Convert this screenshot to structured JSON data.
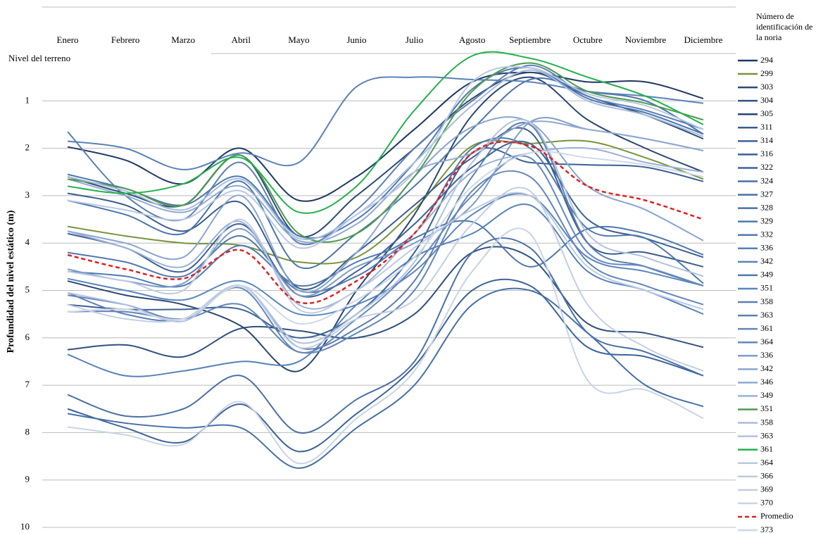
{
  "chart_data": {
    "type": "line",
    "y_label": "Profundidad del nivel estático (m)",
    "legend_title": "Número de identificación de la noria",
    "categories": [
      "Enero",
      "Febrero",
      "Marzo",
      "Abril",
      "Mayo",
      "Junio",
      "Julio",
      "Agosto",
      "Septiembre",
      "Octubre",
      "Noviembre",
      "Diciembre"
    ],
    "ylim": [
      0,
      10
    ],
    "y_inverted": true,
    "smooth": true,
    "grid": true,
    "legend": "right",
    "yticks": [
      {
        "value": 0,
        "label": "Nivel del terreno"
      },
      1,
      2,
      3,
      4,
      5,
      6,
      7,
      8,
      9,
      10
    ],
    "series": [
      {
        "name": "294",
        "color": "#1f3864",
        "values": [
          1.97,
          2.25,
          2.75,
          2.0,
          3.1,
          2.6,
          1.6,
          0.6,
          0.4,
          0.6,
          0.6,
          0.95
        ]
      },
      {
        "name": "299",
        "color": "#77933c",
        "values": [
          3.65,
          3.85,
          4.0,
          4.05,
          4.4,
          4.3,
          3.3,
          1.95,
          1.9,
          1.85,
          2.2,
          2.65
        ]
      },
      {
        "name": "303",
        "color": "#2e4a73",
        "values": [
          2.6,
          2.95,
          3.2,
          2.15,
          3.85,
          3.0,
          2.0,
          0.95,
          0.4,
          0.9,
          1.3,
          1.8
        ]
      },
      {
        "name": "304",
        "color": "#2f5080",
        "values": [
          6.25,
          6.15,
          6.4,
          5.8,
          5.85,
          6.0,
          5.5,
          4.2,
          4.3,
          5.7,
          5.9,
          6.2
        ]
      },
      {
        "name": "305",
        "color": "#2a4670",
        "values": [
          4.8,
          5.1,
          5.3,
          5.75,
          6.7,
          5.0,
          3.4,
          1.3,
          0.5,
          1.4,
          2.0,
          2.5
        ]
      },
      {
        "name": "311",
        "color": "#3a5c8c",
        "values": [
          2.95,
          3.2,
          3.75,
          3.15,
          4.95,
          4.2,
          3.2,
          2.2,
          1.65,
          4.0,
          4.2,
          4.5
        ]
      },
      {
        "name": "314",
        "color": "#3d6196",
        "values": [
          3.8,
          4.1,
          4.6,
          3.6,
          5.1,
          4.6,
          3.6,
          2.4,
          1.9,
          3.5,
          3.9,
          4.3
        ]
      },
      {
        "name": "316",
        "color": "#3b5f92",
        "values": [
          5.3,
          5.4,
          5.4,
          5.4,
          6.0,
          5.5,
          4.2,
          2.1,
          2.3,
          2.35,
          2.4,
          2.7
        ]
      },
      {
        "name": "322",
        "color": "#3c639a",
        "values": [
          7.5,
          7.9,
          8.2,
          7.4,
          8.4,
          7.6,
          6.6,
          5.0,
          4.9,
          6.2,
          6.4,
          6.8
        ]
      },
      {
        "name": "324",
        "color": "#4a70a5",
        "values": [
          7.2,
          7.65,
          7.5,
          6.8,
          8.0,
          7.3,
          6.5,
          4.2,
          4.1,
          5.9,
          6.3,
          6.8
        ]
      },
      {
        "name": "327",
        "color": "#4670a8",
        "values": [
          7.6,
          7.8,
          7.9,
          7.9,
          8.75,
          7.9,
          7.0,
          5.3,
          5.0,
          5.9,
          7.0,
          7.45
        ]
      },
      {
        "name": "328",
        "color": "#4b73aa",
        "values": [
          3.1,
          3.4,
          3.8,
          2.7,
          4.5,
          3.8,
          2.8,
          1.6,
          0.55,
          0.8,
          1.0,
          1.7
        ]
      },
      {
        "name": "329",
        "color": "#4f78ae",
        "values": [
          4.2,
          4.4,
          4.7,
          3.85,
          5.0,
          4.7,
          3.9,
          3.55,
          4.5,
          3.7,
          3.8,
          4.25
        ]
      },
      {
        "name": "332",
        "color": "#5079b0",
        "values": [
          4.6,
          4.7,
          4.9,
          4.05,
          4.9,
          4.4,
          3.8,
          2.0,
          2.0,
          3.7,
          3.9,
          4.85
        ]
      },
      {
        "name": "336",
        "color": "#5681b8",
        "values": [
          6.35,
          6.8,
          6.7,
          6.5,
          6.5,
          5.3,
          4.3,
          3.8,
          3.2,
          4.6,
          5.0,
          5.5
        ]
      },
      {
        "name": "342",
        "color": "#5a82b8",
        "values": [
          1.85,
          2.0,
          2.45,
          2.1,
          2.3,
          0.7,
          0.5,
          0.55,
          0.6,
          0.8,
          0.9,
          1.05
        ]
      },
      {
        "name": "349",
        "color": "#4e78b0",
        "values": [
          2.55,
          2.85,
          3.2,
          2.6,
          3.85,
          3.5,
          2.3,
          0.75,
          0.3,
          0.95,
          1.25,
          1.7
        ]
      },
      {
        "name": "351",
        "color": "#5a86bf",
        "values": [
          4.75,
          5.0,
          5.2,
          4.8,
          5.5,
          5.3,
          4.6,
          3.4,
          3.0,
          4.3,
          4.6,
          4.9
        ]
      },
      {
        "name": "358",
        "color": "#5d7fb2",
        "values": [
          1.65,
          3.0,
          3.5,
          2.3,
          4.0,
          3.3,
          2.0,
          1.0,
          0.25,
          0.9,
          1.2,
          1.6
        ]
      },
      {
        "name": "363",
        "color": "#5c7fae",
        "values": [
          5.05,
          5.5,
          5.6,
          4.9,
          6.2,
          5.8,
          4.8,
          2.6,
          1.5,
          4.0,
          4.5,
          4.9
        ]
      },
      {
        "name": "361",
        "color": "#6385b8",
        "values": [
          5.45,
          5.45,
          5.6,
          5.3,
          6.3,
          5.9,
          5.0,
          2.9,
          2.6,
          4.4,
          4.9,
          5.3
        ]
      },
      {
        "name": "364",
        "color": "#6588bd",
        "values": [
          5.1,
          5.3,
          5.6,
          4.95,
          6.3,
          5.6,
          4.5,
          3.0,
          2.2,
          4.2,
          4.5,
          4.9
        ]
      },
      {
        "name": "336",
        "color": "#7f9cc8",
        "values": [
          4.55,
          4.8,
          4.85,
          3.7,
          5.1,
          4.5,
          4.0,
          3.2,
          1.45,
          1.6,
          1.8,
          2.05
        ]
      },
      {
        "name": "342",
        "color": "#8aa5cf",
        "values": [
          3.75,
          4.0,
          4.3,
          3.0,
          5.0,
          4.2,
          2.6,
          1.55,
          1.45,
          2.8,
          3.3,
          3.95
        ]
      },
      {
        "name": "346",
        "color": "#8fa9d2",
        "values": [
          2.65,
          3.0,
          3.35,
          2.8,
          3.95,
          3.6,
          2.5,
          2.1,
          1.45,
          1.6,
          1.8,
          2.05
        ]
      },
      {
        "name": "349",
        "color": "#9ab1d6",
        "values": [
          3.75,
          4.1,
          4.5,
          3.55,
          5.3,
          5.0,
          3.8,
          2.5,
          2.1,
          2.0,
          2.3,
          2.5
        ]
      },
      {
        "name": "351",
        "color": "#4e9a4e",
        "values": [
          2.65,
          2.85,
          3.2,
          2.15,
          3.8,
          3.8,
          2.6,
          0.8,
          0.2,
          0.8,
          1.05,
          1.4
        ]
      },
      {
        "name": "358",
        "color": "#a7bcdd",
        "values": [
          2.6,
          2.9,
          3.3,
          2.65,
          3.9,
          3.4,
          2.3,
          1.1,
          0.35,
          1.0,
          1.3,
          1.75
        ]
      },
      {
        "name": "363",
        "color": "#b0c2e0",
        "values": [
          5.05,
          5.3,
          5.65,
          4.9,
          6.1,
          5.5,
          4.4,
          2.3,
          1.45,
          3.8,
          4.3,
          4.7
        ]
      },
      {
        "name": "361",
        "color": "#22b14c",
        "values": [
          2.8,
          2.95,
          2.75,
          2.2,
          3.35,
          2.8,
          1.2,
          0.05,
          0.1,
          0.5,
          0.9,
          1.5
        ]
      },
      {
        "name": "364",
        "color": "#b7c8e3",
        "values": [
          3.1,
          3.3,
          3.5,
          2.9,
          4.1,
          3.4,
          2.5,
          0.6,
          0.3,
          0.85,
          1.1,
          1.6
        ]
      },
      {
        "name": "366",
        "color": "#bccbe3",
        "values": [
          4.6,
          4.8,
          5.0,
          3.5,
          5.4,
          5.0,
          4.1,
          3.3,
          3.0,
          4.5,
          5.0,
          5.4
        ]
      },
      {
        "name": "369",
        "color": "#c3cfe4",
        "values": [
          5.3,
          5.6,
          5.6,
          4.9,
          6.2,
          5.6,
          5.2,
          3.6,
          2.9,
          5.3,
          6.2,
          6.7
        ]
      },
      {
        "name": "370",
        "color": "#c9d4e6",
        "values": [
          7.88,
          8.05,
          8.25,
          7.35,
          8.65,
          7.7,
          6.7,
          4.6,
          3.8,
          6.9,
          7.1,
          7.7
        ]
      },
      {
        "name": "Promedio",
        "color": "#e02020",
        "line_style": "dashed",
        "values": [
          4.25,
          4.55,
          4.75,
          4.15,
          5.25,
          4.8,
          3.8,
          2.1,
          1.95,
          2.8,
          3.1,
          3.5
        ]
      },
      {
        "name": "373",
        "color": "#cfd8e8",
        "values": [
          5.45,
          5.4,
          5.6,
          4.9,
          5.7,
          5.2,
          4.3,
          2.8,
          2.1,
          2.2,
          2.35,
          2.6
        ]
      }
    ]
  }
}
